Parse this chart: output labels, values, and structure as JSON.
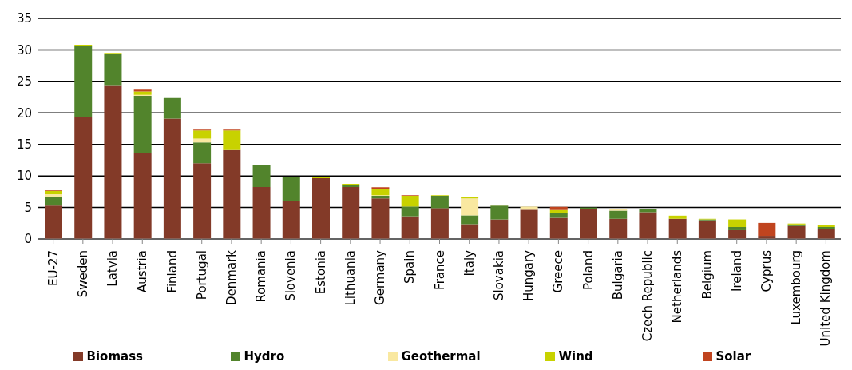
{
  "chart_data": {
    "type": "bar",
    "stacked": true,
    "categories": [
      "EU-27",
      "Sweden",
      "Latvia",
      "Austria",
      "Finland",
      "Portugal",
      "Denmark",
      "Romania",
      "Slovenia",
      "Estonia",
      "Lithuania",
      "Germany",
      "Spain",
      "France",
      "Italy",
      "Slovakia",
      "Hungary",
      "Greece",
      "Poland",
      "Bulgaria",
      "Czech Republic",
      "Netherlands",
      "Belgium",
      "Ireland",
      "Cyprus",
      "Luxembourg",
      "United Kingdom"
    ],
    "series": [
      {
        "name": "Biomass",
        "color": "#833a28",
        "values": [
          5.3,
          19.3,
          24.4,
          13.6,
          19.1,
          12.0,
          14.1,
          8.25,
          6.05,
          9.65,
          8.25,
          6.45,
          3.6,
          4.9,
          2.35,
          3.1,
          4.65,
          3.35,
          4.75,
          3.2,
          4.25,
          3.2,
          2.95,
          1.4,
          0.5,
          2.05,
          1.65
        ]
      },
      {
        "name": "Hydro",
        "color": "#52842c",
        "values": [
          1.4,
          11.3,
          5.0,
          9.1,
          3.25,
          3.3,
          null,
          3.45,
          3.85,
          null,
          0.35,
          0.4,
          1.55,
          1.95,
          1.4,
          2.2,
          null,
          0.75,
          0.25,
          1.3,
          0.5,
          null,
          0.15,
          0.5,
          null,
          0.25,
          0.25
        ]
      },
      {
        "name": "Geothermal",
        "color": "#f9e8a0",
        "values": [
          0.4,
          null,
          null,
          0.15,
          null,
          0.6,
          null,
          null,
          null,
          null,
          null,
          0.1,
          null,
          null,
          2.7,
          0.1,
          0.5,
          null,
          null,
          0.25,
          null,
          null,
          null,
          null,
          null,
          null,
          null
        ]
      },
      {
        "name": "Wind",
        "color": "#c8d200",
        "values": [
          0.55,
          0.2,
          0.1,
          0.55,
          null,
          1.3,
          3.1,
          null,
          null,
          0.15,
          0.15,
          1.0,
          1.7,
          0.1,
          0.25,
          null,
          null,
          0.5,
          null,
          null,
          null,
          0.5,
          0.1,
          1.2,
          null,
          0.15,
          0.3
        ]
      },
      {
        "name": "Solar",
        "color": "#c0441f",
        "values": [
          0.1,
          null,
          null,
          0.4,
          null,
          0.15,
          0.15,
          null,
          null,
          null,
          null,
          0.25,
          0.1,
          null,
          null,
          null,
          null,
          0.5,
          null,
          null,
          null,
          null,
          null,
          null,
          2.05,
          null,
          null
        ]
      }
    ],
    "ylim": [
      0,
      35
    ],
    "yticks": [
      0,
      5,
      10,
      15,
      20,
      25,
      30,
      35
    ],
    "grid": "y",
    "legend": "bottom"
  }
}
